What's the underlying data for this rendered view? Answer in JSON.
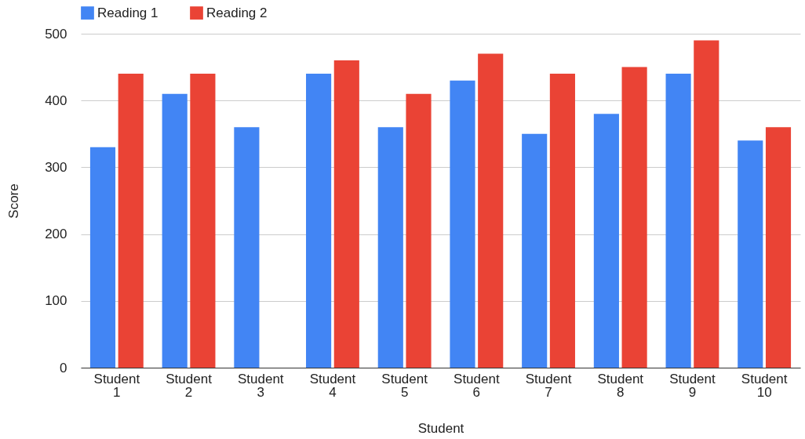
{
  "chart_data": {
    "type": "bar",
    "xlabel": "Student",
    "ylabel": "Score",
    "categories": [
      "Student 1",
      "Student 2",
      "Student 3",
      "Student 4",
      "Student 5",
      "Student 6",
      "Student 7",
      "Student 8",
      "Student 9",
      "Student 10"
    ],
    "series": [
      {
        "name": "Reading 1",
        "color": "#4285f4",
        "values": [
          330,
          410,
          360,
          440,
          360,
          430,
          350,
          380,
          440,
          340
        ]
      },
      {
        "name": "Reading 2",
        "color": "#ea4335",
        "values": [
          440,
          440,
          null,
          460,
          410,
          470,
          440,
          450,
          490,
          360
        ]
      }
    ],
    "ylim": [
      0,
      500
    ],
    "yticks": [
      0,
      100,
      200,
      300,
      400,
      500
    ],
    "grid": "y",
    "legend": "top"
  }
}
